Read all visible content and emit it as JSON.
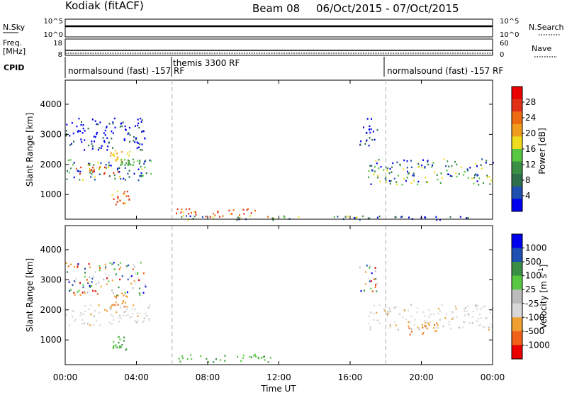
{
  "header": {
    "station": "Kodiak (fitACF)",
    "beam": "Beam 08",
    "date_range": "06/Oct/2015 - 07/Oct/2015"
  },
  "strip": {
    "nsky_label": "N.Sky",
    "nsky_ticks": [
      "10^5",
      "10^0"
    ],
    "nsearch_label": "N.Search",
    "nsearch_ticks": [
      "10^5",
      "10^0"
    ],
    "freq_label_1": "Freq.",
    "freq_label_2": "[MHz]",
    "freq_ticks": [
      "18",
      "8"
    ],
    "nave_label": "Nave",
    "nave_ticks": [
      "60",
      "0"
    ],
    "cpid_label": "CPID",
    "cpid_segments": [
      {
        "label": "normalsound (fast) -157 RF",
        "start_hour": 0
      },
      {
        "label": "themis 3300 RF",
        "start_hour": 6
      },
      {
        "label": "normalsound (fast) -157 RF",
        "start_hour": 18
      }
    ]
  },
  "colors": {
    "power_scale": [
      "#0000ee",
      "#1f4fb0",
      "#2e6e4a",
      "#3a8f45",
      "#58c842",
      "#f0dc1e",
      "#f09a1e",
      "#ee6a12",
      "#e23018",
      "#ea0000"
    ],
    "velocity_scale": [
      "#ea0000",
      "#f06018",
      "#f0a030",
      "#d8d8d8",
      "#bbbbbb",
      "#58c842",
      "#3a8f45",
      "#1f4fb0",
      "#0000ee"
    ],
    "marker_line": "#aaaaaa"
  },
  "chart_data": [
    {
      "type": "heatmap",
      "title": "Power",
      "xlabel": "Time UT",
      "ylabel": "Slant Range [km]",
      "xticks": [
        "00:00",
        "04:00",
        "08:00",
        "12:00",
        "16:00",
        "20:00",
        "00:00"
      ],
      "xlim_hours": [
        0,
        24
      ],
      "yticks": [
        1000,
        2000,
        3000,
        4000
      ],
      "ylim": [
        180,
        4800
      ],
      "colorbar_label": "Power [dB]",
      "colorbar_ticks": [
        "28",
        "24",
        "20",
        "16",
        "12",
        "8",
        "4"
      ],
      "vlines_hours": [
        6,
        18
      ],
      "scatter_regions": [
        {
          "t": [
            0.0,
            4.8
          ],
          "r": [
            1500,
            2200
          ],
          "level": "mixed"
        },
        {
          "t": [
            0.5,
            3.0
          ],
          "r": [
            1700,
            1950
          ],
          "level": "high"
        },
        {
          "t": [
            2.5,
            3.6
          ],
          "r": [
            2100,
            2500
          ],
          "level": "mid-high"
        },
        {
          "t": [
            3.0,
            4.2
          ],
          "r": [
            2000,
            2200
          ],
          "level": "mid"
        },
        {
          "t": [
            2.6,
            3.6
          ],
          "r": [
            650,
            1150
          ],
          "level": "high"
        },
        {
          "t": [
            0.0,
            4.5
          ],
          "r": [
            2500,
            3600
          ],
          "level": "low"
        },
        {
          "t": [
            6.0,
            11.5
          ],
          "r": [
            280,
            550
          ],
          "level": "high"
        },
        {
          "t": [
            6.5,
            17.0
          ],
          "r": [
            180,
            320
          ],
          "level": "mixed"
        },
        {
          "t": [
            17.0,
            24.0
          ],
          "r": [
            1350,
            2200
          ],
          "level": "mixed"
        },
        {
          "t": [
            16.5,
            17.5
          ],
          "r": [
            2600,
            3600
          ],
          "level": "low"
        },
        {
          "t": [
            17.0,
            24.0
          ],
          "r": [
            180,
            300
          ],
          "level": "low"
        }
      ]
    },
    {
      "type": "heatmap",
      "title": "Velocity",
      "xlabel": "Time UT",
      "ylabel": "Slant Range [km]",
      "xticks": [
        "00:00",
        "04:00",
        "08:00",
        "12:00",
        "16:00",
        "20:00",
        "00:00"
      ],
      "xlim_hours": [
        0,
        24
      ],
      "yticks": [
        1000,
        2000,
        3000,
        4000
      ],
      "ylim": [
        180,
        4800
      ],
      "colorbar_label": "Velocity [m s^-1]",
      "colorbar_ticks": [
        "1000",
        "500",
        "100",
        "25",
        "-25",
        "-100",
        "-500",
        "-1000"
      ],
      "vlines_hours": [
        6,
        18
      ],
      "scatter_regions": [
        {
          "t": [
            0.0,
            4.8
          ],
          "r": [
            1500,
            2200
          ],
          "level": "gray"
        },
        {
          "t": [
            2.5,
            3.6
          ],
          "r": [
            2100,
            2600
          ],
          "level": "orange"
        },
        {
          "t": [
            0.0,
            4.5
          ],
          "r": [
            2500,
            3600
          ],
          "level": "mixed"
        },
        {
          "t": [
            2.6,
            3.6
          ],
          "r": [
            650,
            1150
          ],
          "level": "green"
        },
        {
          "t": [
            6.0,
            11.5
          ],
          "r": [
            280,
            550
          ],
          "level": "green"
        },
        {
          "t": [
            17.0,
            24.0
          ],
          "r": [
            1350,
            2200
          ],
          "level": "gray"
        },
        {
          "t": [
            19.0,
            21.0
          ],
          "r": [
            1200,
            1600
          ],
          "level": "orange"
        },
        {
          "t": [
            16.5,
            17.5
          ],
          "r": [
            2600,
            3600
          ],
          "level": "mixed"
        }
      ]
    }
  ]
}
